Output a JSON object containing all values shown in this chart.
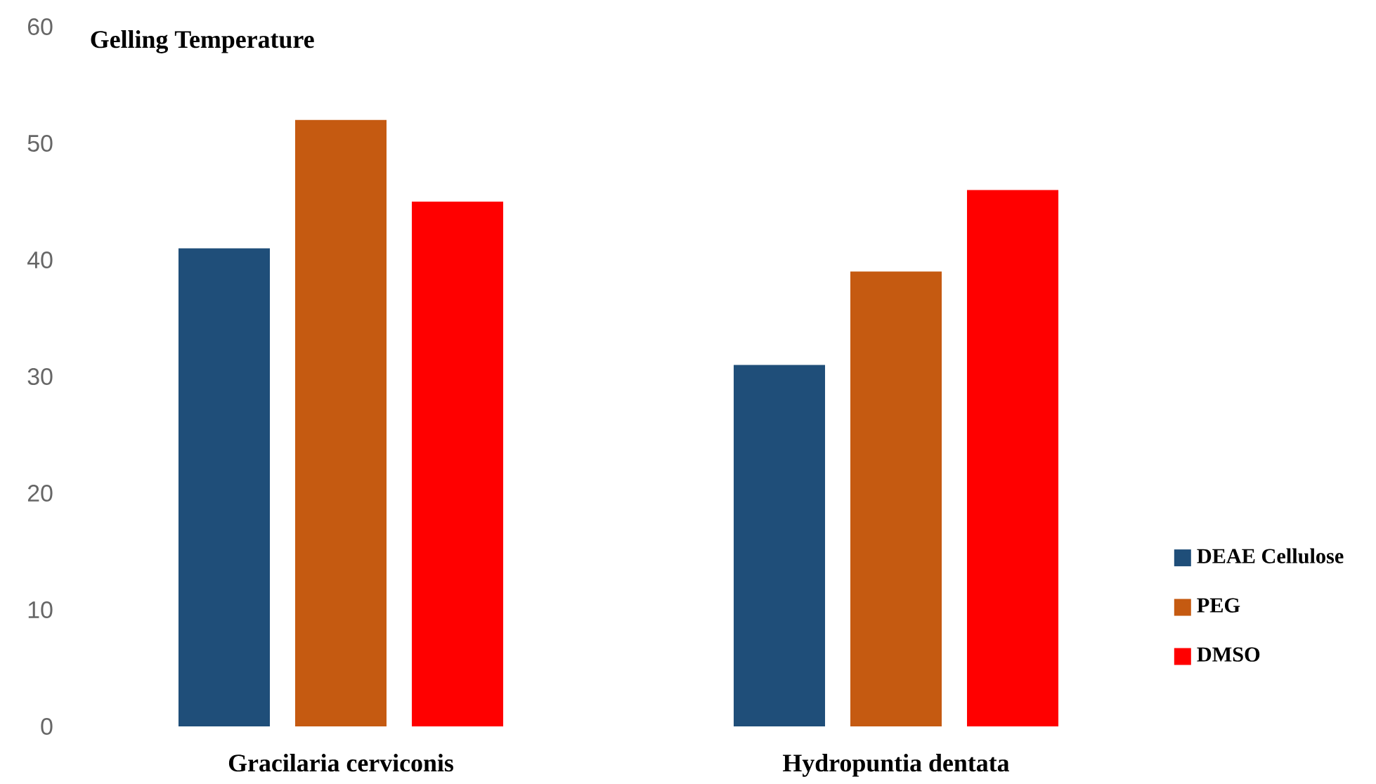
{
  "chart_data": {
    "type": "bar",
    "title": "Gelling Temperature",
    "categories": [
      "Gracilaria cerviconis",
      "Hydropuntia dentata"
    ],
    "series": [
      {
        "name": "DEAE Cellulose",
        "color": "#1f4e79",
        "values": [
          41,
          31
        ]
      },
      {
        "name": "PEG",
        "color": "#c55a11",
        "values": [
          52,
          39
        ]
      },
      {
        "name": "DMSO",
        "color": "#ff0000",
        "values": [
          45,
          46
        ]
      }
    ],
    "ylim": [
      0,
      60
    ],
    "yticks": [
      0,
      10,
      20,
      30,
      40,
      50,
      60
    ],
    "grid": false,
    "legend": "right"
  }
}
